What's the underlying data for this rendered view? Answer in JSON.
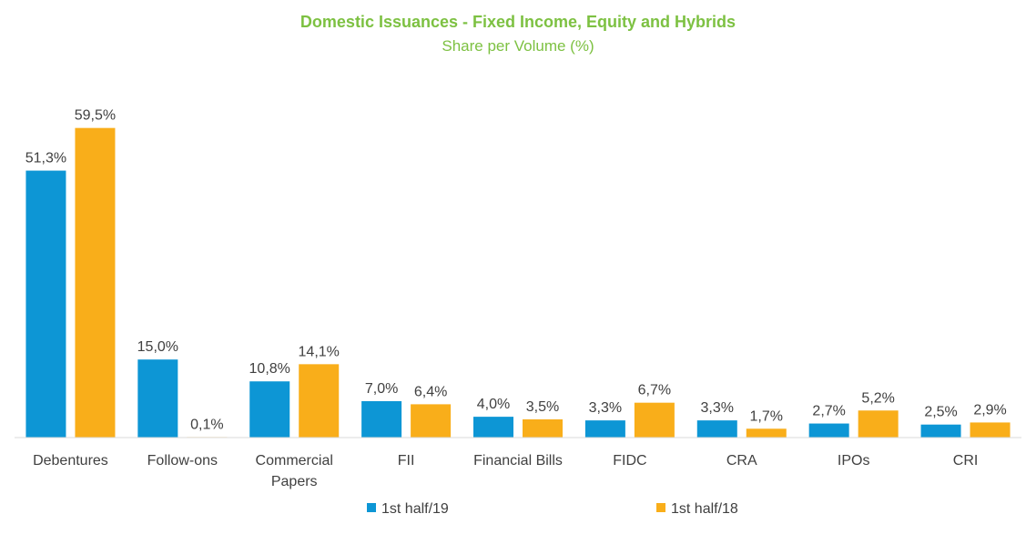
{
  "chart_data": {
    "type": "bar",
    "title": "Domestic Issuances - Fixed Income, Equity and Hybrids",
    "subtitle": "Share per Volume (%)",
    "categories": [
      [
        "Debentures"
      ],
      [
        "Follow-ons"
      ],
      [
        "Commercial",
        "Papers"
      ],
      [
        "FII"
      ],
      [
        "Financial Bills"
      ],
      [
        "FIDC"
      ],
      [
        "CRA"
      ],
      [
        "IPOs"
      ],
      [
        "CRI"
      ]
    ],
    "series": [
      {
        "name": "1st half/19",
        "color": "#0d96d5",
        "values": [
          51.3,
          15.0,
          10.8,
          7.0,
          4.0,
          3.3,
          3.3,
          2.7,
          2.5
        ],
        "labels": [
          "51,3%",
          "15,0%",
          "10,8%",
          "7,0%",
          "4,0%",
          "3,3%",
          "3,3%",
          "2,7%",
          "2,5%"
        ]
      },
      {
        "name": "1st half/18",
        "color": "#f9ae1a",
        "values": [
          59.5,
          0.1,
          14.1,
          6.4,
          3.5,
          6.7,
          1.7,
          5.2,
          2.9
        ],
        "labels": [
          "59,5%",
          "0,1%",
          "14,1%",
          "6,4%",
          "3,5%",
          "6,7%",
          "1,7%",
          "5,2%",
          "2,9%"
        ]
      }
    ],
    "ylim": [
      0,
      60
    ],
    "grid": false,
    "legend_position": "bottom",
    "axis_color": "#d9d9d9"
  }
}
